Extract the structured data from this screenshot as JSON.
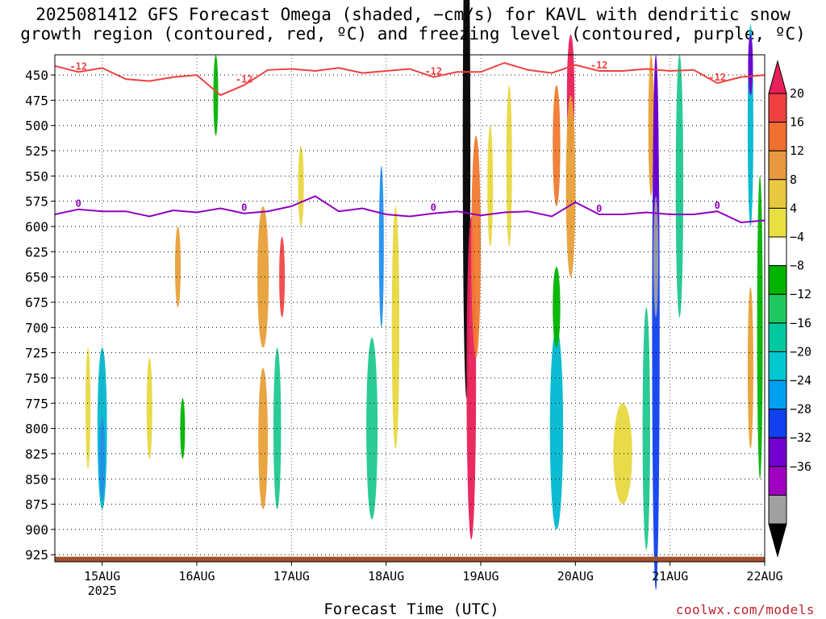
{
  "chart_data": {
    "type": "heatmap",
    "title": "2025081412 GFS Forecast Omega (shaded, −cm/s) for KAVL with dendritic snow",
    "subtitle": "growth region (contoured, red, ºC) and freezing level (contoured, purple, ºC)",
    "xlabel": "Forecast Time (UTC)",
    "ylabel": "",
    "y_is_pressure_hpa": true,
    "y_inverted": true,
    "ylim": [
      430,
      932
    ],
    "yticks": [
      "450",
      "475",
      "500",
      "525",
      "550",
      "575",
      "600",
      "625",
      "650",
      "675",
      "700",
      "725",
      "750",
      "775",
      "800",
      "825",
      "850",
      "875",
      "900",
      "925"
    ],
    "x_ticks": [
      {
        "label": "15AUG",
        "sublabel": "2025",
        "day": 15
      },
      {
        "label": "16AUG",
        "sublabel": "",
        "day": 16
      },
      {
        "label": "17AUG",
        "sublabel": "",
        "day": 17
      },
      {
        "label": "18AUG",
        "sublabel": "",
        "day": 18
      },
      {
        "label": "19AUG",
        "sublabel": "",
        "day": 19
      },
      {
        "label": "20AUG",
        "sublabel": "",
        "day": 20
      },
      {
        "label": "21AUG",
        "sublabel": "",
        "day": 21
      },
      {
        "label": "22AUG",
        "sublabel": "",
        "day": 22
      }
    ],
    "xlim_days": [
      14.5,
      22
    ],
    "grid": true,
    "colorbar": {
      "labels": [
        "20",
        "16",
        "12",
        "8",
        "4",
        "−4",
        "−8",
        "−12",
        "−16",
        "−20",
        "−24",
        "−28",
        "−32",
        "−36"
      ],
      "colors": [
        "#e8205a",
        "#f04040",
        "#f07030",
        "#e89840",
        "#e8c840",
        "#e8e040",
        "#ffffff",
        "#00b400",
        "#20c860",
        "#00c8a0",
        "#00c8d0",
        "#00a0f0",
        "#1040f0",
        "#7000d0",
        "#a000c0",
        "#a0a0a0",
        "#000000"
      ]
    },
    "omega_blobs": [
      {
        "day": 15.0,
        "p": 800,
        "dd": 0.05,
        "dp": 80,
        "level": -16
      },
      {
        "day": 15.0,
        "p": 830,
        "dd": 0.03,
        "dp": 40,
        "level": -20
      },
      {
        "day": 14.85,
        "p": 780,
        "dd": 0.02,
        "dp": 60,
        "level": 6
      },
      {
        "day": 15.5,
        "p": 780,
        "dd": 0.03,
        "dp": 50,
        "level": 6
      },
      {
        "day": 15.8,
        "p": 640,
        "dd": 0.03,
        "dp": 40,
        "level": 8
      },
      {
        "day": 15.85,
        "p": 800,
        "dd": 0.02,
        "dp": 30,
        "level": -8
      },
      {
        "day": 16.2,
        "p": 470,
        "dd": 0.02,
        "dp": 40,
        "level": -8
      },
      {
        "day": 16.7,
        "p": 650,
        "dd": 0.06,
        "dp": 70,
        "level": 8
      },
      {
        "day": 16.9,
        "p": 650,
        "dd": 0.03,
        "dp": 40,
        "level": 16
      },
      {
        "day": 16.85,
        "p": 800,
        "dd": 0.04,
        "dp": 80,
        "level": -12
      },
      {
        "day": 16.7,
        "p": 810,
        "dd": 0.05,
        "dp": 70,
        "level": 8
      },
      {
        "day": 17.1,
        "p": 560,
        "dd": 0.03,
        "dp": 40,
        "level": 6
      },
      {
        "day": 17.85,
        "p": 800,
        "dd": 0.06,
        "dp": 90,
        "level": -12
      },
      {
        "day": 17.95,
        "p": 620,
        "dd": 0.02,
        "dp": 80,
        "level": -20
      },
      {
        "day": 18.1,
        "p": 700,
        "dd": 0.04,
        "dp": 120,
        "level": 6
      },
      {
        "day": 18.85,
        "p": 520,
        "dd": 0.04,
        "dp": 250,
        "level": -36
      },
      {
        "day": 18.9,
        "p": 750,
        "dd": 0.05,
        "dp": 160,
        "level": 20
      },
      {
        "day": 18.95,
        "p": 620,
        "dd": 0.05,
        "dp": 110,
        "level": 12
      },
      {
        "day": 19.1,
        "p": 560,
        "dd": 0.03,
        "dp": 60,
        "level": 6
      },
      {
        "day": 19.3,
        "p": 540,
        "dd": 0.03,
        "dp": 80,
        "level": 6
      },
      {
        "day": 19.8,
        "p": 800,
        "dd": 0.07,
        "dp": 100,
        "level": -16
      },
      {
        "day": 19.8,
        "p": 680,
        "dd": 0.04,
        "dp": 40,
        "level": -8
      },
      {
        "day": 19.95,
        "p": 470,
        "dd": 0.04,
        "dp": 60,
        "level": 20
      },
      {
        "day": 19.95,
        "p": 560,
        "dd": 0.05,
        "dp": 90,
        "level": 8
      },
      {
        "day": 19.8,
        "p": 520,
        "dd": 0.04,
        "dp": 60,
        "level": 12
      },
      {
        "day": 20.5,
        "p": 825,
        "dd": 0.1,
        "dp": 50,
        "level": 6
      },
      {
        "day": 20.75,
        "p": 800,
        "dd": 0.04,
        "dp": 120,
        "level": -12
      },
      {
        "day": 20.8,
        "p": 500,
        "dd": 0.03,
        "dp": 70,
        "level": 8
      },
      {
        "day": 20.85,
        "p": 700,
        "dd": 0.04,
        "dp": 260,
        "level": -24
      },
      {
        "day": 20.85,
        "p": 550,
        "dd": 0.03,
        "dp": 120,
        "level": -28
      },
      {
        "day": 20.85,
        "p": 630,
        "dd": 0.02,
        "dp": 60,
        "level": -32
      },
      {
        "day": 21.1,
        "p": 560,
        "dd": 0.04,
        "dp": 130,
        "level": -12
      },
      {
        "day": 21.85,
        "p": 500,
        "dd": 0.03,
        "dp": 100,
        "level": -16
      },
      {
        "day": 21.85,
        "p": 440,
        "dd": 0.02,
        "dp": 30,
        "level": -28
      },
      {
        "day": 21.85,
        "p": 740,
        "dd": 0.03,
        "dp": 80,
        "level": 8
      },
      {
        "day": 21.95,
        "p": 700,
        "dd": 0.03,
        "dp": 150,
        "level": -8
      }
    ],
    "dgz_top_isotherm": {
      "name": "-12",
      "color": "#f04040",
      "x_days": [
        14.5,
        14.75,
        15.0,
        15.25,
        15.5,
        15.75,
        16.0,
        16.25,
        16.5,
        16.75,
        17.0,
        17.25,
        17.5,
        17.75,
        18.0,
        18.25,
        18.5,
        18.75,
        19.0,
        19.25,
        19.5,
        19.75,
        20.0,
        20.25,
        20.5,
        20.75,
        21.0,
        21.25,
        21.5,
        21.75,
        22.0
      ],
      "p_hpa": [
        441,
        447,
        443,
        454,
        456,
        452,
        450,
        470,
        460,
        445,
        444,
        446,
        443,
        448,
        446,
        444,
        452,
        447,
        447,
        438,
        445,
        448,
        440,
        446,
        446,
        444,
        446,
        445,
        458,
        452,
        450
      ]
    },
    "freezing_level": {
      "name": "0",
      "color": "#9000c0",
      "x_days": [
        14.5,
        14.75,
        15.0,
        15.25,
        15.5,
        15.75,
        16.0,
        16.25,
        16.5,
        16.75,
        17.0,
        17.25,
        17.5,
        17.75,
        18.0,
        18.25,
        18.5,
        18.75,
        19.0,
        19.25,
        19.5,
        19.75,
        20.0,
        20.25,
        20.5,
        20.75,
        21.0,
        21.25,
        21.5,
        21.75,
        22.0
      ],
      "p_hpa": [
        588,
        583,
        585,
        585,
        590,
        584,
        586,
        582,
        587,
        585,
        580,
        570,
        585,
        582,
        588,
        590,
        587,
        585,
        589,
        586,
        585,
        590,
        576,
        588,
        588,
        586,
        588,
        588,
        585,
        596,
        594
      ]
    },
    "ground": {
      "p_top": 927,
      "p_bottom": 932,
      "color": "#a0522d"
    }
  },
  "footer": {
    "credit": "coolwx.com/models"
  }
}
